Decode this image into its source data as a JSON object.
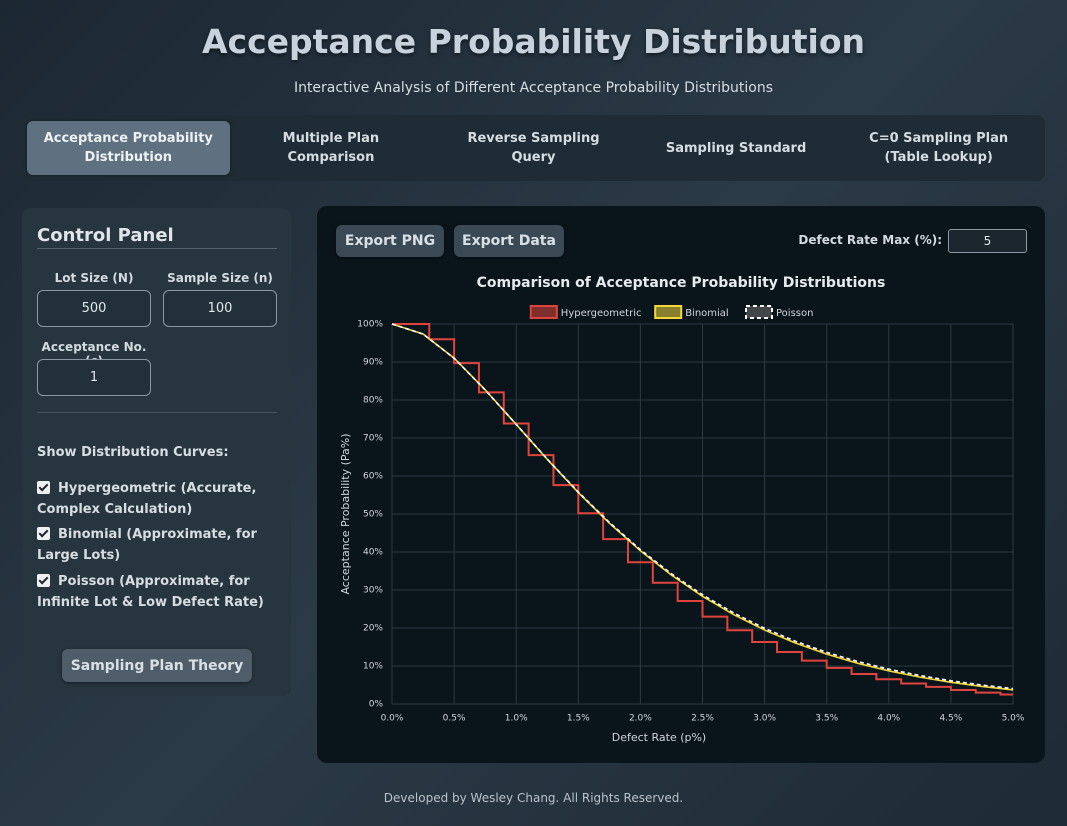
{
  "header": {
    "title": "Acceptance Probability Distribution",
    "subtitle": "Interactive Analysis of Different Acceptance Probability Distributions"
  },
  "tabs": [
    "Acceptance Probability Distribution",
    "Multiple Plan Comparison",
    "Reverse Sampling Query",
    "Sampling Standard",
    "C=0 Sampling Plan (Table Lookup)"
  ],
  "control_panel": {
    "title": "Control Panel",
    "fields": [
      {
        "label": "Lot Size (N)",
        "value": "500"
      },
      {
        "label": "Sample Size (n)",
        "value": "100"
      },
      {
        "label": "Acceptance No. (c)",
        "value": "1"
      }
    ],
    "curves_heading": "Show Distribution Curves:",
    "curves": [
      "Hypergeometric (Accurate, Complex Calculation)",
      "Binomial (Approximate, for Large Lots)",
      "Poisson (Approximate, for Infinite Lot & Low Defect Rate)"
    ],
    "theory_button": "Sampling Plan Theory"
  },
  "chart_card": {
    "export_png": "Export PNG",
    "export_data": "Export Data",
    "max_label": "Defect Rate Max (%):",
    "max_value": "5"
  },
  "chart_data": {
    "type": "line",
    "title": "Comparison of Acceptance Probability Distributions",
    "x_label": "Defect Rate (p%)",
    "y_label": "Acceptance Probability (Pa%)",
    "xlim": [
      0,
      5
    ],
    "ylim": [
      0,
      100
    ],
    "xticks": [
      {
        "value": 0,
        "label": "0.0%"
      },
      {
        "value": 0.5,
        "label": "0.5%"
      },
      {
        "value": 1,
        "label": "1.0%"
      },
      {
        "value": 1.5,
        "label": "1.5%"
      },
      {
        "value": 2,
        "label": "2.0%"
      },
      {
        "value": 2.5,
        "label": "2.5%"
      },
      {
        "value": 3,
        "label": "3.0%"
      },
      {
        "value": 3.5,
        "label": "3.5%"
      },
      {
        "value": 4,
        "label": "4.0%"
      },
      {
        "value": 4.5,
        "label": "4.5%"
      },
      {
        "value": 5,
        "label": "5.0%"
      }
    ],
    "yticks": [
      {
        "value": 0,
        "label": "0%"
      },
      {
        "value": 10,
        "label": "10%"
      },
      {
        "value": 20,
        "label": "20%"
      },
      {
        "value": 30,
        "label": "30%"
      },
      {
        "value": 40,
        "label": "40%"
      },
      {
        "value": 50,
        "label": "50%"
      },
      {
        "value": 60,
        "label": "60%"
      },
      {
        "value": 70,
        "label": "70%"
      },
      {
        "value": 80,
        "label": "80%"
      },
      {
        "value": 90,
        "label": "90%"
      },
      {
        "value": 100,
        "label": "100%"
      }
    ],
    "grid": true,
    "legend": "top",
    "series": [
      {
        "name": "Hypergeometric",
        "color": "#e0443c",
        "step": true,
        "x": [
          0,
          0.1,
          0.3,
          0.5,
          0.7,
          0.9,
          1.1,
          1.3,
          1.5,
          1.7,
          1.9,
          2.1,
          2.3,
          2.5,
          2.7,
          2.9,
          3.1,
          3.3,
          3.5,
          3.7,
          3.9,
          4.1,
          4.3,
          4.5,
          4.7,
          4.9,
          5.0
        ],
        "values": [
          100,
          100,
          96.0,
          89.7,
          82.0,
          73.8,
          65.5,
          57.6,
          50.2,
          43.4,
          37.3,
          31.9,
          27.1,
          23.0,
          19.4,
          16.3,
          13.7,
          11.4,
          9.5,
          7.9,
          6.5,
          5.4,
          4.5,
          3.7,
          3.0,
          2.5,
          2.5
        ]
      },
      {
        "name": "Binomial",
        "color": "#f2d63a",
        "x": [
          0,
          0.25,
          0.5,
          0.75,
          1,
          1.25,
          1.5,
          1.75,
          2,
          2.25,
          2.5,
          2.75,
          3,
          3.25,
          3.5,
          3.75,
          4,
          4.25,
          4.5,
          4.75,
          5
        ],
        "values": [
          100,
          97.37,
          91.02,
          82.7,
          73.58,
          64.4,
          55.65,
          47.58,
          40.33,
          33.92,
          28.34,
          23.54,
          19.46,
          16.01,
          13.12,
          10.71,
          8.72,
          7.07,
          5.71,
          4.61,
          3.71
        ]
      },
      {
        "name": "Poisson",
        "color": "#ffffff",
        "dashed": true,
        "x": [
          0,
          0.25,
          0.5,
          0.75,
          1,
          1.25,
          1.5,
          1.75,
          2,
          2.25,
          2.5,
          2.75,
          3,
          3.25,
          3.5,
          3.75,
          4,
          4.25,
          4.5,
          4.75,
          5
        ],
        "values": [
          100,
          97.35,
          90.98,
          82.66,
          73.58,
          64.46,
          55.78,
          47.79,
          40.6,
          34.26,
          28.73,
          23.97,
          19.91,
          16.48,
          13.59,
          11.17,
          9.16,
          7.49,
          6.11,
          4.97,
          4.04
        ]
      }
    ]
  },
  "footer": "Developed by Wesley Chang. All Rights Reserved."
}
